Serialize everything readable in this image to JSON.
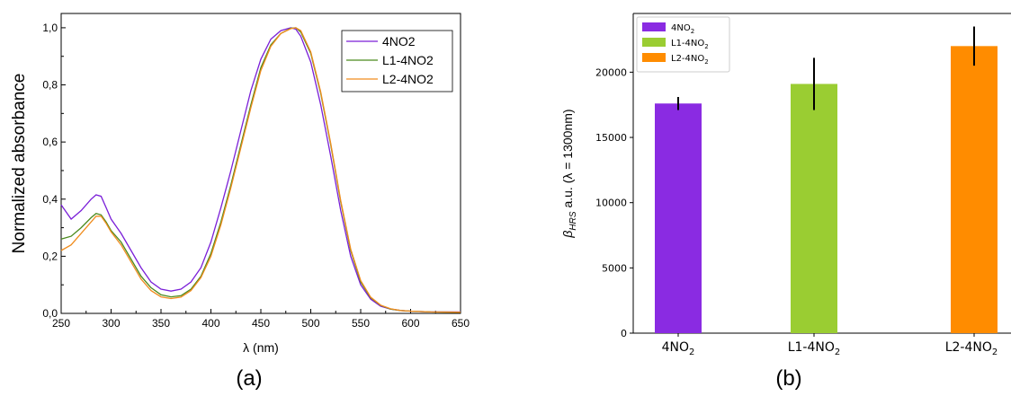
{
  "chart_data": [
    {
      "type": "line",
      "caption": "(a)",
      "xlabel": "λ (nm)",
      "ylabel": "Normalized absorbance",
      "xlim": [
        250,
        650
      ],
      "ylim": [
        0,
        1.05
      ],
      "xticks": [
        "250",
        "300",
        "350",
        "400",
        "450",
        "500",
        "550",
        "600",
        "650"
      ],
      "yticks": [
        "0,0",
        "0,2",
        "0,4",
        "0,6",
        "0,8",
        "1,0"
      ],
      "legend_position": "top-right",
      "series": [
        {
          "name": "4NO2",
          "color": "#7a1fd8",
          "x": [
            250,
            260,
            270,
            280,
            285,
            290,
            295,
            300,
            310,
            320,
            330,
            340,
            350,
            360,
            370,
            380,
            390,
            400,
            410,
            420,
            430,
            440,
            450,
            460,
            470,
            480,
            485,
            490,
            500,
            510,
            520,
            530,
            540,
            550,
            560,
            570,
            580,
            590,
            600,
            620,
            650
          ],
          "y": [
            0.38,
            0.33,
            0.36,
            0.4,
            0.415,
            0.41,
            0.37,
            0.33,
            0.28,
            0.22,
            0.16,
            0.11,
            0.085,
            0.078,
            0.085,
            0.11,
            0.16,
            0.25,
            0.37,
            0.5,
            0.64,
            0.78,
            0.89,
            0.96,
            0.99,
            1.0,
            0.995,
            0.97,
            0.88,
            0.73,
            0.55,
            0.36,
            0.2,
            0.1,
            0.05,
            0.025,
            0.015,
            0.01,
            0.008,
            0.005,
            0.005
          ]
        },
        {
          "name": "L1-4NO2",
          "color": "#4a8a1c",
          "x": [
            250,
            260,
            270,
            280,
            285,
            290,
            295,
            300,
            310,
            320,
            330,
            340,
            350,
            360,
            370,
            380,
            390,
            400,
            410,
            420,
            430,
            440,
            450,
            460,
            470,
            480,
            485,
            490,
            500,
            510,
            520,
            530,
            540,
            550,
            560,
            570,
            580,
            590,
            600,
            620,
            650
          ],
          "y": [
            0.26,
            0.27,
            0.3,
            0.335,
            0.35,
            0.345,
            0.32,
            0.29,
            0.25,
            0.19,
            0.13,
            0.09,
            0.065,
            0.058,
            0.062,
            0.085,
            0.13,
            0.21,
            0.32,
            0.45,
            0.59,
            0.73,
            0.86,
            0.94,
            0.98,
            0.998,
            1.0,
            0.985,
            0.91,
            0.77,
            0.59,
            0.39,
            0.22,
            0.11,
            0.055,
            0.028,
            0.015,
            0.01,
            0.008,
            0.005,
            0.004
          ]
        },
        {
          "name": "L2-4NO2",
          "color": "#f08c1e",
          "x": [
            250,
            260,
            270,
            280,
            285,
            290,
            295,
            300,
            310,
            320,
            330,
            340,
            350,
            360,
            370,
            380,
            390,
            400,
            410,
            420,
            430,
            440,
            450,
            460,
            470,
            480,
            485,
            490,
            500,
            510,
            520,
            530,
            540,
            550,
            560,
            570,
            580,
            590,
            600,
            620,
            650
          ],
          "y": [
            0.22,
            0.24,
            0.28,
            0.32,
            0.34,
            0.34,
            0.315,
            0.285,
            0.24,
            0.18,
            0.12,
            0.08,
            0.058,
            0.052,
            0.057,
            0.08,
            0.125,
            0.2,
            0.31,
            0.44,
            0.58,
            0.72,
            0.85,
            0.935,
            0.98,
            0.997,
            1.0,
            0.99,
            0.915,
            0.775,
            0.595,
            0.395,
            0.225,
            0.115,
            0.057,
            0.029,
            0.016,
            0.01,
            0.008,
            0.005,
            0.004
          ]
        }
      ]
    },
    {
      "type": "bar",
      "caption": "(b)",
      "ylabel_parts": {
        "beta": "β",
        "sub": "HRS",
        "rest": " a.u. (λ = 1300nm)"
      },
      "categories": [
        {
          "base": "4NO",
          "sub": "2"
        },
        {
          "base": "L1-4NO",
          "sub": "2"
        },
        {
          "base": "L2-4NO",
          "sub": "2"
        }
      ],
      "values": [
        17600,
        19100,
        22000
      ],
      "errors": [
        500,
        2000,
        1500
      ],
      "colors": [
        "#8a2be2",
        "#9acd32",
        "#ff8c00"
      ],
      "ylim": [
        0,
        24500
      ],
      "yticks": [
        "0",
        "5000",
        "10000",
        "15000",
        "20000"
      ],
      "legend_position": "top-left",
      "legend": [
        {
          "base": "4NO",
          "sub": "2"
        },
        {
          "base": "L1-4NO",
          "sub": "2"
        },
        {
          "base": "L2-4NO",
          "sub": "2"
        }
      ]
    }
  ]
}
